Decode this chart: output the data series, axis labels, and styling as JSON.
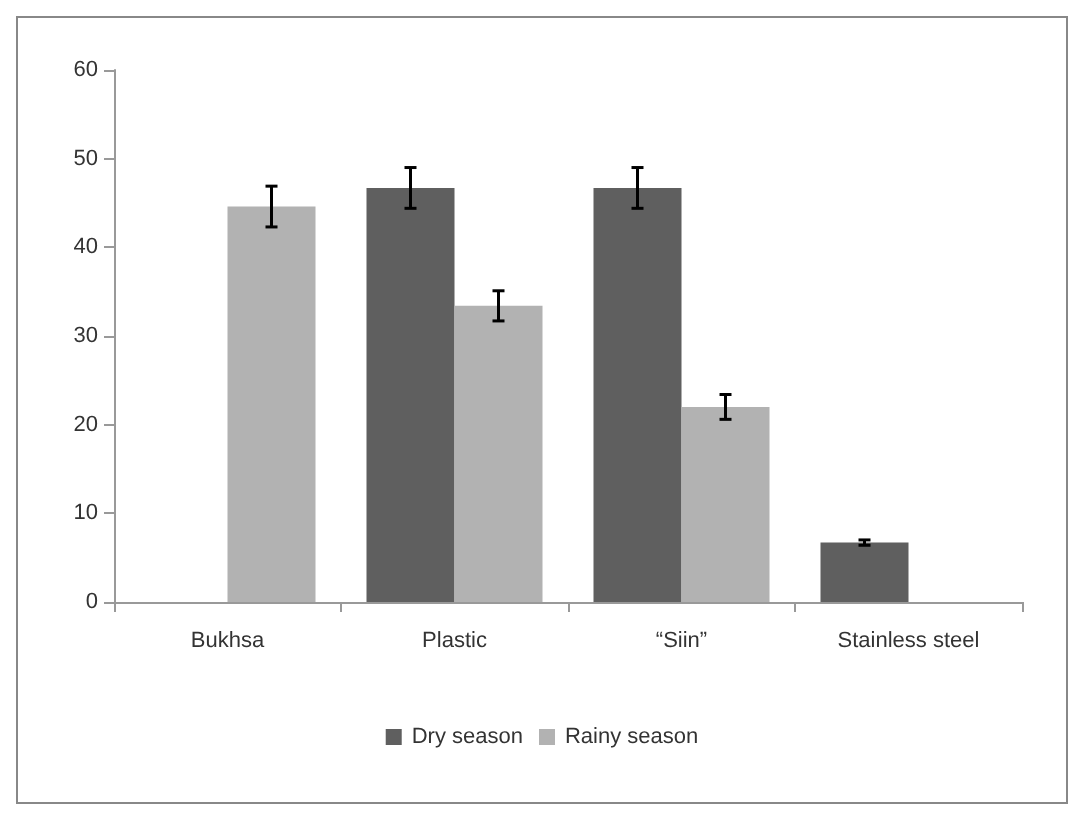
{
  "chart_data": {
    "type": "bar",
    "categories": [
      "Bukhsa",
      "Plastic",
      "“Siin”",
      "Stainless steel"
    ],
    "series": [
      {
        "name": "Dry season",
        "color": "#5f5f5f",
        "values": [
          null,
          46.7,
          46.7,
          6.7
        ],
        "errors": [
          null,
          2.3,
          2.3,
          0.3
        ]
      },
      {
        "name": "Rainy season",
        "color": "#b2b2b2",
        "values": [
          44.6,
          33.4,
          22.0,
          null
        ],
        "errors": [
          2.3,
          1.7,
          1.4,
          null
        ]
      }
    ],
    "ylim": [
      0,
      60
    ],
    "yticks": [
      0,
      10,
      20,
      30,
      40,
      50,
      60
    ],
    "grid": false,
    "legend": "bottom"
  }
}
